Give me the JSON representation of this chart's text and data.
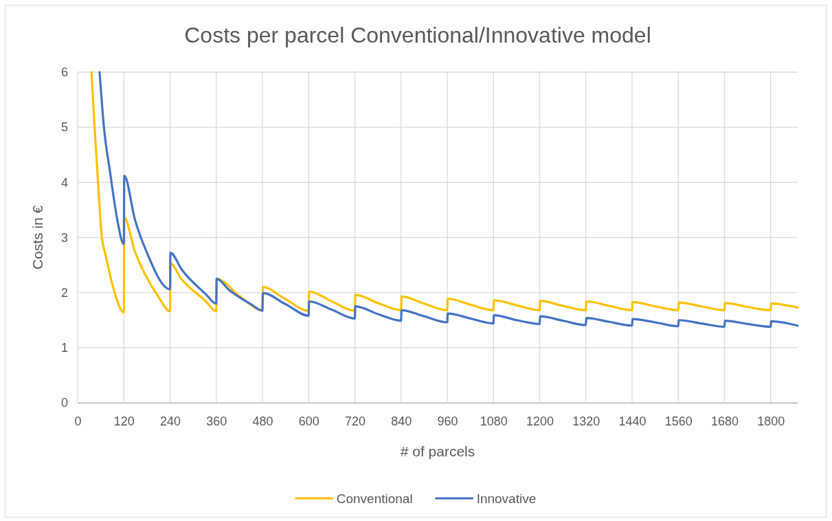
{
  "chart_data": {
    "type": "line",
    "title": "Costs per parcel Conventional/Innovative model",
    "xlabel": "# of parcels",
    "ylabel": "Costs in €",
    "xlim": [
      0,
      1870
    ],
    "xticks": [
      0,
      120,
      240,
      360,
      480,
      600,
      720,
      840,
      960,
      1080,
      1200,
      1320,
      1440,
      1560,
      1680,
      1800
    ],
    "ylim": [
      0,
      6
    ],
    "yticks": [
      0,
      1,
      2,
      3,
      4,
      5,
      6
    ],
    "grid": true,
    "legend": "bottom",
    "line_style": "solid",
    "marker": "none",
    "series": [
      {
        "name": "Conventional",
        "color": "#ffc000",
        "x": [
          36,
          44,
          53,
          63,
          72,
          96,
          120,
          121,
          149,
          173,
          211,
          240,
          241,
          268,
          333,
          360,
          361,
          420,
          480,
          481,
          540,
          600,
          601,
          660,
          720,
          721,
          780,
          840,
          841,
          900,
          960,
          961,
          1020,
          1080,
          1081,
          1140,
          1200,
          1201,
          1260,
          1320,
          1321,
          1380,
          1440,
          1441,
          1500,
          1560,
          1561,
          1620,
          1680,
          1681,
          1740,
          1800,
          1801,
          1870
        ],
        "values": [
          6.0,
          5.0,
          4.0,
          3.0,
          2.7,
          2.0,
          1.64,
          3.36,
          2.74,
          2.36,
          1.91,
          1.66,
          2.53,
          2.26,
          1.84,
          1.66,
          2.25,
          1.94,
          1.68,
          2.1,
          1.88,
          1.67,
          2.02,
          1.84,
          1.67,
          1.96,
          1.81,
          1.68,
          1.93,
          1.8,
          1.68,
          1.89,
          1.78,
          1.68,
          1.86,
          1.77,
          1.68,
          1.85,
          1.76,
          1.68,
          1.84,
          1.76,
          1.68,
          1.83,
          1.75,
          1.68,
          1.82,
          1.75,
          1.68,
          1.81,
          1.74,
          1.68,
          1.8,
          1.73
        ]
      },
      {
        "name": "Innovative",
        "color": "#4472c4",
        "x": [
          57,
          69,
          84,
          102,
          120,
          121,
          149,
          179,
          240,
          241,
          271,
          333,
          360,
          361,
          393,
          452,
          480,
          481,
          540,
          600,
          601,
          660,
          720,
          721,
          780,
          840,
          841,
          900,
          960,
          961,
          1020,
          1080,
          1081,
          1140,
          1200,
          1201,
          1260,
          1320,
          1321,
          1380,
          1440,
          1441,
          1500,
          1560,
          1561,
          1620,
          1680,
          1681,
          1740,
          1800,
          1801,
          1870
        ],
        "values": [
          6.0,
          4.95,
          4.2,
          3.36,
          2.88,
          4.12,
          3.32,
          2.74,
          2.06,
          2.72,
          2.41,
          1.97,
          1.8,
          2.25,
          2.05,
          1.78,
          1.67,
          1.99,
          1.79,
          1.58,
          1.84,
          1.69,
          1.53,
          1.75,
          1.61,
          1.49,
          1.68,
          1.57,
          1.46,
          1.62,
          1.53,
          1.44,
          1.59,
          1.5,
          1.43,
          1.57,
          1.49,
          1.41,
          1.54,
          1.47,
          1.4,
          1.52,
          1.46,
          1.39,
          1.5,
          1.44,
          1.38,
          1.49,
          1.43,
          1.38,
          1.48,
          1.4
        ]
      }
    ]
  }
}
